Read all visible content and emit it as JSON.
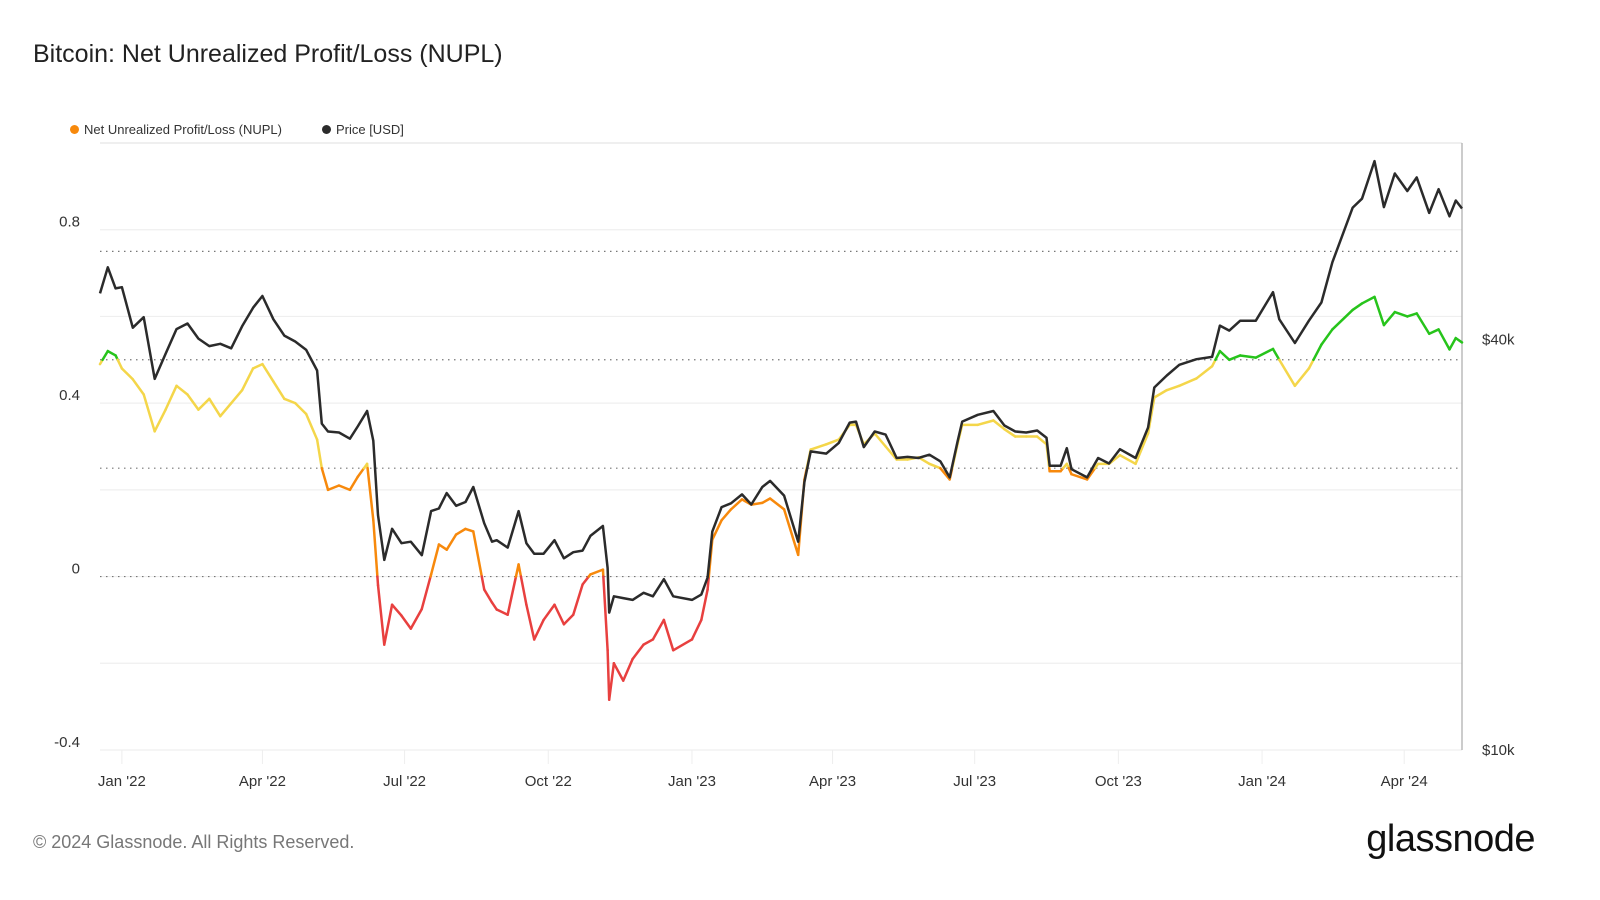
{
  "title": "Bitcoin: Net Unrealized Profit/Loss (NUPL)",
  "footer": "© 2024 Glassnode. All Rights Reserved.",
  "logo": "glassnode",
  "legend": [
    {
      "label": "Net Unrealized Profit/Loss (NUPL)",
      "color": "#f7890c"
    },
    {
      "label": "Price [USD]",
      "color": "#2b2b2b"
    }
  ],
  "chart_data": {
    "type": "line",
    "title": "Bitcoin: Net Unrealized Profit/Loss (NUPL)",
    "xlim": [
      "2021-12-18",
      "2024-05-08"
    ],
    "x_ticks": [
      {
        "date": "2022-01-01",
        "label": "Jan '22"
      },
      {
        "date": "2022-04-01",
        "label": "Apr '22"
      },
      {
        "date": "2022-07-01",
        "label": "Jul '22"
      },
      {
        "date": "2022-10-01",
        "label": "Oct '22"
      },
      {
        "date": "2023-01-01",
        "label": "Jan '23"
      },
      {
        "date": "2023-04-01",
        "label": "Apr '23"
      },
      {
        "date": "2023-07-01",
        "label": "Jul '23"
      },
      {
        "date": "2023-10-01",
        "label": "Oct '23"
      },
      {
        "date": "2024-01-01",
        "label": "Jan '24"
      },
      {
        "date": "2024-04-01",
        "label": "Apr '24"
      }
    ],
    "y_left": {
      "ylim": [
        -0.4,
        1.0
      ],
      "ticks": [
        {
          "value": 0.8,
          "label": "0.8"
        },
        {
          "value": 0.4,
          "label": "0.4"
        },
        {
          "value": 0,
          "label": "0"
        },
        {
          "value": -0.4,
          "label": "-0.4"
        }
      ],
      "dotted_levels": [
        0.75,
        0.5,
        0.25,
        0
      ]
    },
    "y_right": {
      "scale": "log",
      "ylim": [
        10000,
        77600
      ],
      "ticks": [
        {
          "value": 40000,
          "label": "$40k"
        },
        {
          "value": 10000,
          "label": "$10k"
        }
      ]
    },
    "nupl_bands": [
      {
        "min": -1,
        "max": 0,
        "color": "#e8403f"
      },
      {
        "min": 0,
        "max": 0.25,
        "color": "#f7890c"
      },
      {
        "min": 0.25,
        "max": 0.5,
        "color": "#f4d64a"
      },
      {
        "min": 0.5,
        "max": 0.75,
        "color": "#27c41b"
      },
      {
        "min": 0.75,
        "max": 2,
        "color": "#2f6fe0"
      }
    ],
    "price_color": "#2b2b2b",
    "grid": true,
    "legend_position": "top-left",
    "x": [
      "2021-12-18",
      "2021-12-23",
      "2021-12-28",
      "2022-01-01",
      "2022-01-08",
      "2022-01-15",
      "2022-01-22",
      "2022-01-29",
      "2022-02-05",
      "2022-02-12",
      "2022-02-19",
      "2022-02-26",
      "2022-03-05",
      "2022-03-12",
      "2022-03-19",
      "2022-03-26",
      "2022-04-01",
      "2022-04-08",
      "2022-04-15",
      "2022-04-22",
      "2022-04-29",
      "2022-05-06",
      "2022-05-09",
      "2022-05-13",
      "2022-05-20",
      "2022-05-27",
      "2022-06-01",
      "2022-06-07",
      "2022-06-11",
      "2022-06-14",
      "2022-06-18",
      "2022-06-23",
      "2022-06-29",
      "2022-07-05",
      "2022-07-12",
      "2022-07-18",
      "2022-07-23",
      "2022-07-28",
      "2022-08-03",
      "2022-08-09",
      "2022-08-14",
      "2022-08-21",
      "2022-08-26",
      "2022-08-29",
      "2022-09-05",
      "2022-09-12",
      "2022-09-17",
      "2022-09-22",
      "2022-09-28",
      "2022-10-05",
      "2022-10-11",
      "2022-10-17",
      "2022-10-23",
      "2022-10-28",
      "2022-11-05",
      "2022-11-08",
      "2022-11-09",
      "2022-11-12",
      "2022-11-18",
      "2022-11-24",
      "2022-12-01",
      "2022-12-07",
      "2022-12-14",
      "2022-12-20",
      "2023-01-01",
      "2023-01-07",
      "2023-01-11",
      "2023-01-14",
      "2023-01-20",
      "2023-01-26",
      "2023-02-02",
      "2023-02-08",
      "2023-02-15",
      "2023-02-20",
      "2023-03-01",
      "2023-03-10",
      "2023-03-14",
      "2023-03-18",
      "2023-03-28",
      "2023-04-05",
      "2023-04-12",
      "2023-04-16",
      "2023-04-21",
      "2023-04-28",
      "2023-05-05",
      "2023-05-12",
      "2023-05-19",
      "2023-05-26",
      "2023-06-02",
      "2023-06-09",
      "2023-06-15",
      "2023-06-20",
      "2023-06-23",
      "2023-07-03",
      "2023-07-13",
      "2023-07-20",
      "2023-07-27",
      "2023-08-03",
      "2023-08-10",
      "2023-08-16",
      "2023-08-18",
      "2023-08-25",
      "2023-08-29",
      "2023-09-01",
      "2023-09-11",
      "2023-09-18",
      "2023-09-25",
      "2023-10-02",
      "2023-10-12",
      "2023-10-20",
      "2023-10-24",
      "2023-11-01",
      "2023-11-09",
      "2023-11-20",
      "2023-11-30",
      "2023-12-05",
      "2023-12-11",
      "2023-12-18",
      "2023-12-28",
      "2024-01-08",
      "2024-01-12",
      "2024-01-22",
      "2024-01-31",
      "2024-02-08",
      "2024-02-15",
      "2024-02-28",
      "2024-03-05",
      "2024-03-13",
      "2024-03-19",
      "2024-03-26",
      "2024-04-03",
      "2024-04-09",
      "2024-04-17",
      "2024-04-23",
      "2024-04-30",
      "2024-05-04",
      "2024-05-08"
    ],
    "series": [
      {
        "name": "Net Unrealized Profit/Loss (NUPL)",
        "axis": "left",
        "values": [
          0.49,
          0.52,
          0.51,
          0.48,
          0.455,
          0.42,
          0.335,
          0.385,
          0.44,
          0.42,
          0.385,
          0.41,
          0.37,
          0.4,
          0.43,
          0.48,
          0.49,
          0.45,
          0.41,
          0.4,
          0.375,
          0.316,
          0.25,
          0.2,
          0.21,
          0.2,
          0.23,
          0.26,
          0.13,
          -0.02,
          -0.157,
          -0.065,
          -0.09,
          -0.12,
          -0.075,
          0.005,
          0.074,
          0.062,
          0.097,
          0.11,
          0.104,
          -0.03,
          -0.06,
          -0.076,
          -0.088,
          0.028,
          -0.065,
          -0.145,
          -0.1,
          -0.065,
          -0.11,
          -0.088,
          -0.018,
          0.005,
          0.016,
          -0.17,
          -0.284,
          -0.2,
          -0.24,
          -0.19,
          -0.157,
          -0.145,
          -0.1,
          -0.17,
          -0.145,
          -0.1,
          -0.03,
          0.085,
          0.13,
          0.155,
          0.178,
          0.166,
          0.17,
          0.18,
          0.155,
          0.05,
          0.224,
          0.293,
          0.305,
          0.316,
          0.35,
          0.35,
          0.305,
          0.33,
          0.3,
          0.27,
          0.27,
          0.275,
          0.26,
          0.25,
          0.224,
          0.305,
          0.35,
          0.35,
          0.36,
          0.34,
          0.323,
          0.323,
          0.323,
          0.305,
          0.243,
          0.243,
          0.26,
          0.236,
          0.224,
          0.26,
          0.26,
          0.28,
          0.26,
          0.33,
          0.413,
          0.43,
          0.44,
          0.457,
          0.485,
          0.52,
          0.5,
          0.51,
          0.505,
          0.525,
          0.5,
          0.44,
          0.48,
          0.535,
          0.57,
          0.615,
          0.63,
          0.645,
          0.58,
          0.61,
          0.6,
          0.607,
          0.56,
          0.57,
          0.524,
          0.55,
          0.54
        ]
      },
      {
        "name": "Price [USD]",
        "axis": "right",
        "values": [
          46700,
          51000,
          47500,
          47700,
          41600,
          43100,
          35000,
          38100,
          41400,
          42200,
          40100,
          39100,
          39400,
          38800,
          41800,
          44500,
          46300,
          42800,
          40500,
          39700,
          38600,
          36000,
          30100,
          29300,
          29200,
          28600,
          29800,
          31400,
          28400,
          22100,
          19000,
          21100,
          20100,
          20200,
          19300,
          22400,
          22600,
          23800,
          22800,
          23100,
          24300,
          21500,
          20200,
          20300,
          19800,
          22400,
          20100,
          19400,
          19400,
          20300,
          19100,
          19500,
          19600,
          20600,
          21300,
          18500,
          15900,
          16800,
          16700,
          16600,
          17000,
          16800,
          17800,
          16800,
          16600,
          16900,
          17900,
          20900,
          22700,
          23000,
          23700,
          22900,
          24300,
          24800,
          23600,
          20200,
          24700,
          27400,
          27200,
          28200,
          30200,
          30300,
          27800,
          29300,
          29000,
          26800,
          26900,
          26800,
          27100,
          26500,
          25100,
          28300,
          30300,
          31000,
          31400,
          29900,
          29300,
          29200,
          29400,
          28700,
          26100,
          26100,
          27700,
          25800,
          25100,
          26800,
          26300,
          27600,
          26800,
          29700,
          34000,
          35400,
          36700,
          37400,
          37700,
          41900,
          41200,
          42600,
          42600,
          46900,
          42800,
          39500,
          42600,
          45300,
          51900,
          62400,
          64300,
          73000,
          62500,
          70000,
          66000,
          69100,
          61300,
          66400,
          60600,
          63900,
          62200
        ]
      }
    ]
  }
}
